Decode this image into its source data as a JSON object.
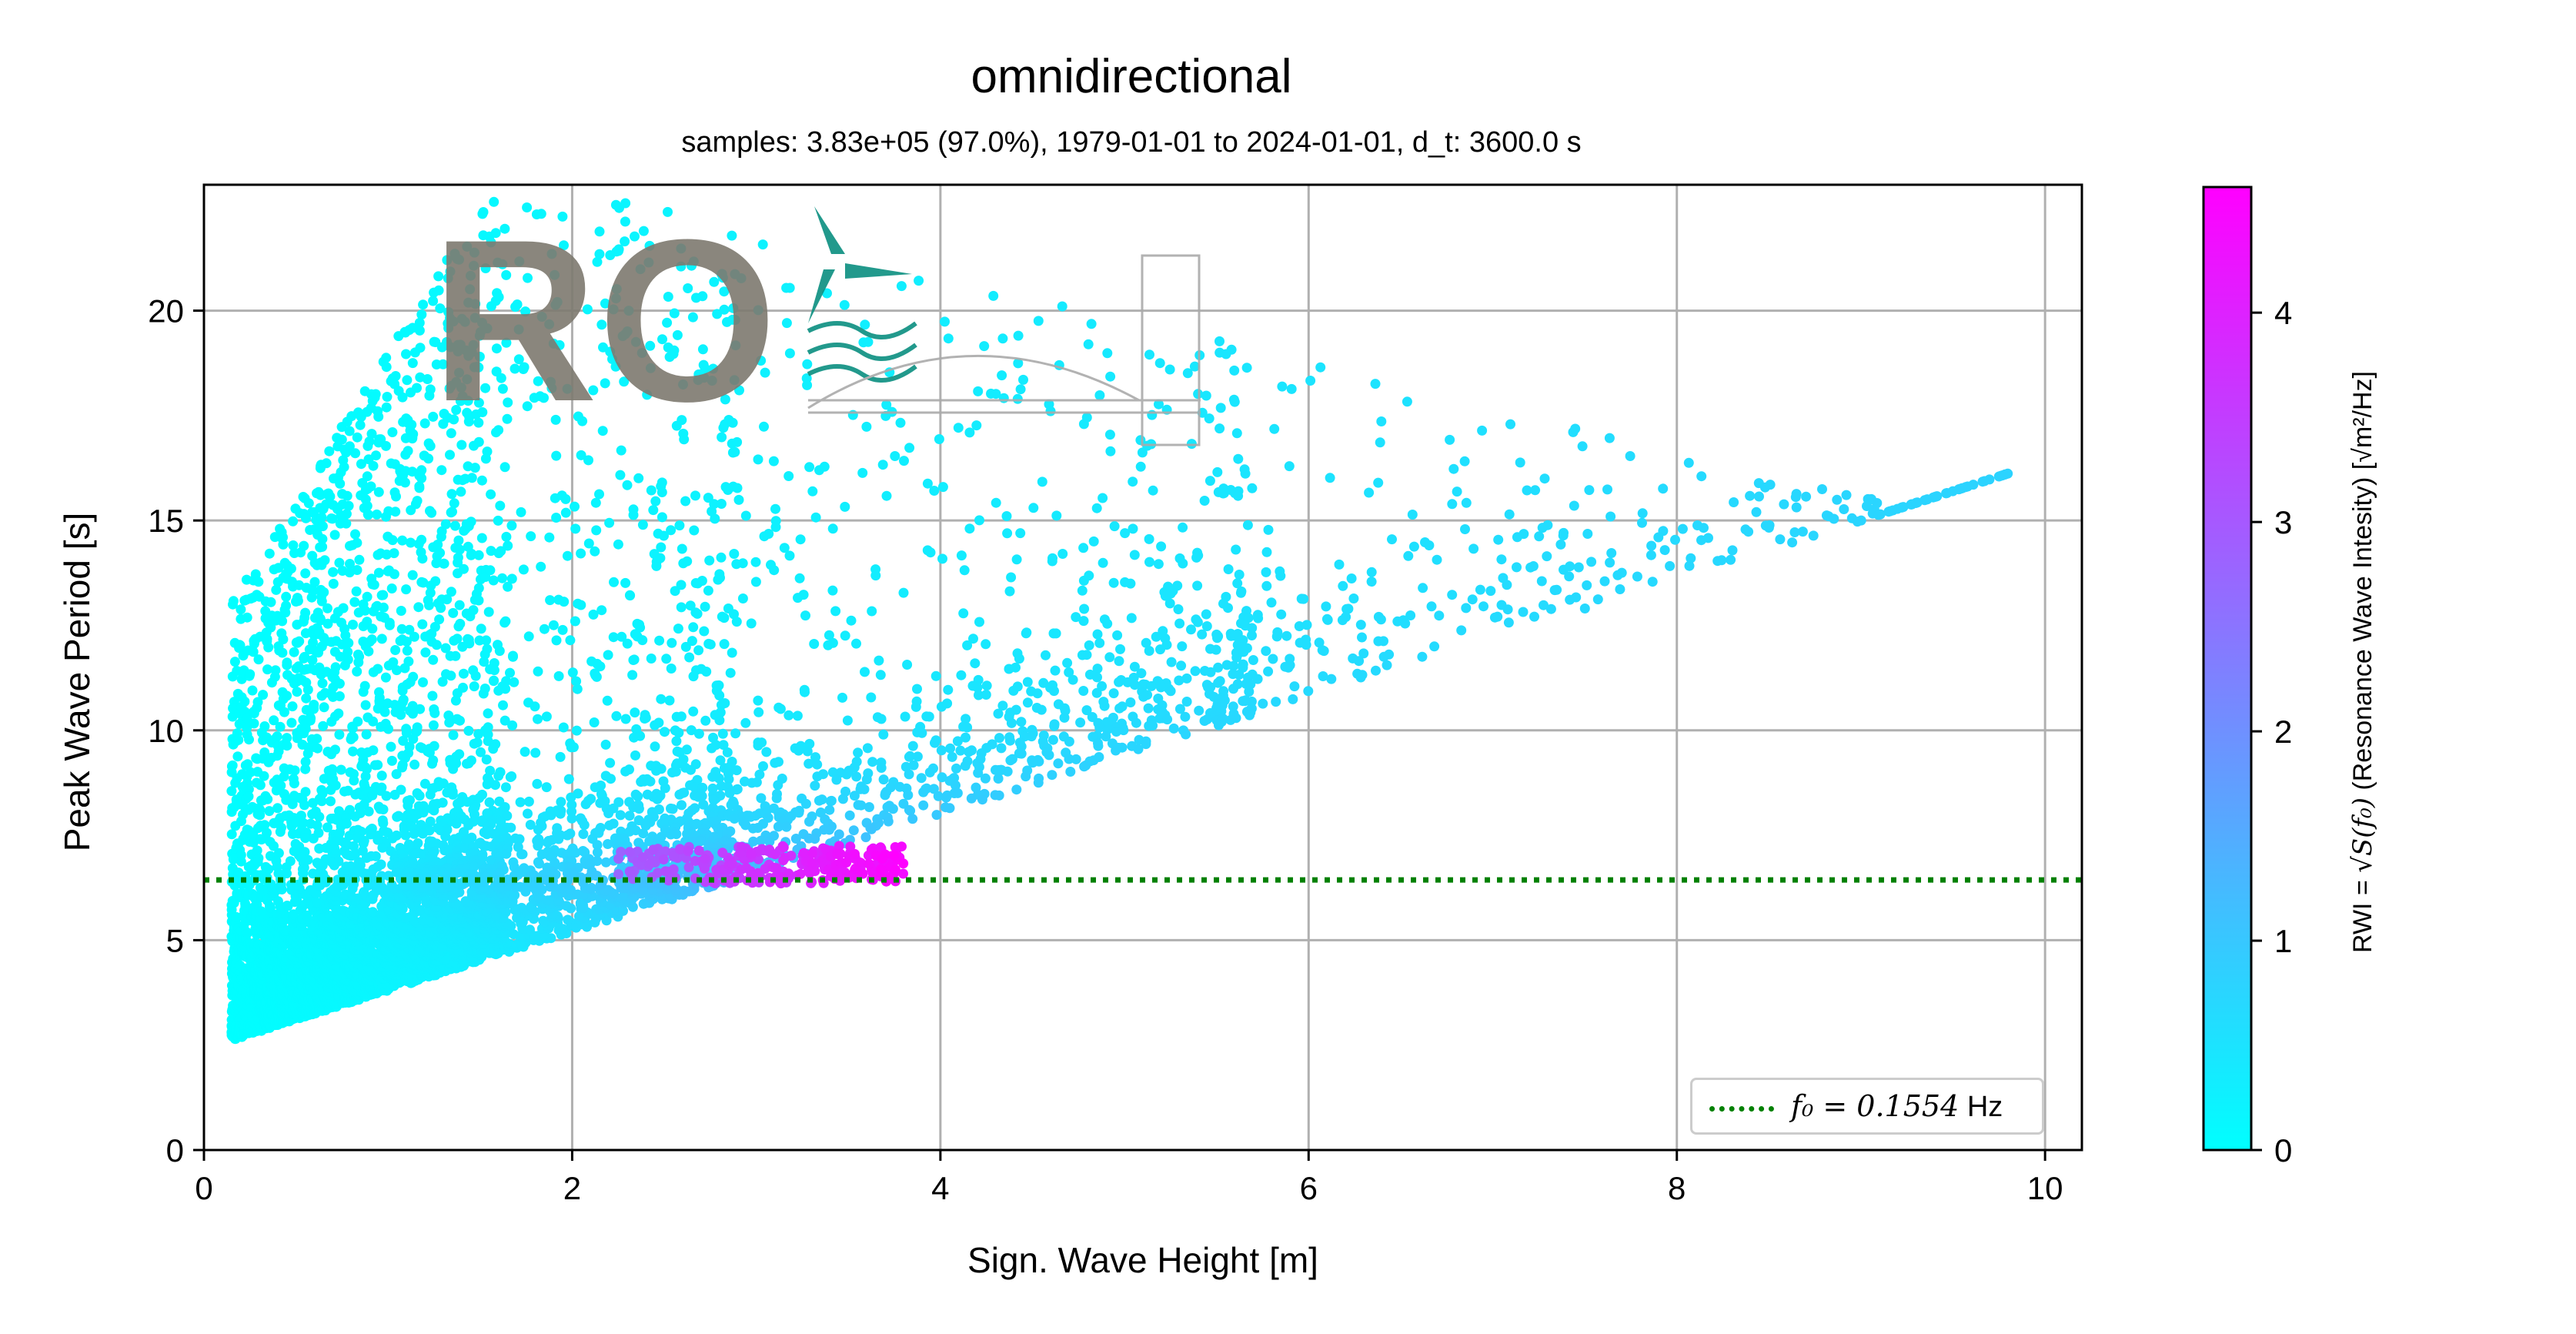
{
  "chart_data": {
    "type": "scatter",
    "title": "omnidirectional",
    "subtitle": "samples: 3.83e+05 (97.0%), 1979-01-01 to 2024-01-01, d_t: 3600.0 s",
    "xlabel": "Sign. Wave Height [m]",
    "ylabel": "Peak Wave Period [s]",
    "xlim": [
      0,
      10.2
    ],
    "ylim": [
      0,
      23
    ],
    "xticks": [
      0,
      2,
      4,
      6,
      8,
      10
    ],
    "yticks": [
      0,
      5,
      10,
      15,
      20
    ],
    "grid": true,
    "colorbar": {
      "label_prefix": "RWI = ",
      "label_math": "√S(f₀)",
      "label_suffix": " (Resonance Wave Intesity) [√m²/Hz]",
      "range": [
        0,
        4.6
      ],
      "ticks": [
        0,
        1,
        2,
        3,
        4
      ],
      "colormap": "cool",
      "color_low": "#00ffff",
      "color_high": "#ff00ff"
    },
    "reference_line": {
      "axis": "y",
      "value": 6.435,
      "style": "dotted",
      "color": "#008000",
      "legend_math": "f₀ = 0.1554",
      "legend_unit": "Hz"
    },
    "legend_position": "lower right",
    "point_cloud": {
      "description_points": [
        {
          "x": 0.2,
          "y": 2.5,
          "rwi": 0.0
        },
        {
          "x": 0.5,
          "y": 5.0,
          "rwi": 0.1
        },
        {
          "x": 1.0,
          "y": 10.0,
          "rwi": 0.3
        },
        {
          "x": 1.0,
          "y": 22.0,
          "rwi": 0.1
        },
        {
          "x": 1.45,
          "y": 22.5,
          "rwi": 0.2
        },
        {
          "x": 2.0,
          "y": 7.0,
          "rwi": 1.5
        },
        {
          "x": 2.5,
          "y": 6.6,
          "rwi": 3.0
        },
        {
          "x": 3.0,
          "y": 6.8,
          "rwi": 4.0
        },
        {
          "x": 3.5,
          "y": 6.8,
          "rwi": 4.5
        },
        {
          "x": 4.0,
          "y": 8.0,
          "rwi": 3.0
        },
        {
          "x": 5.0,
          "y": 9.5,
          "rwi": 2.5
        },
        {
          "x": 6.0,
          "y": 10.5,
          "rwi": 2.2
        },
        {
          "x": 7.0,
          "y": 16.8,
          "rwi": 1.0
        },
        {
          "x": 7.8,
          "y": 15.5,
          "rwi": 1.3
        },
        {
          "x": 8.0,
          "y": 11.0,
          "rwi": 2.5
        },
        {
          "x": 9.0,
          "y": 12.5,
          "rwi": 2.2
        },
        {
          "x": 9.5,
          "y": 11.5,
          "rwi": 3.0
        },
        {
          "x": 10.05,
          "y": 12.5,
          "rwi": 3.0
        }
      ]
    }
  },
  "watermark": {
    "text": "RO"
  }
}
